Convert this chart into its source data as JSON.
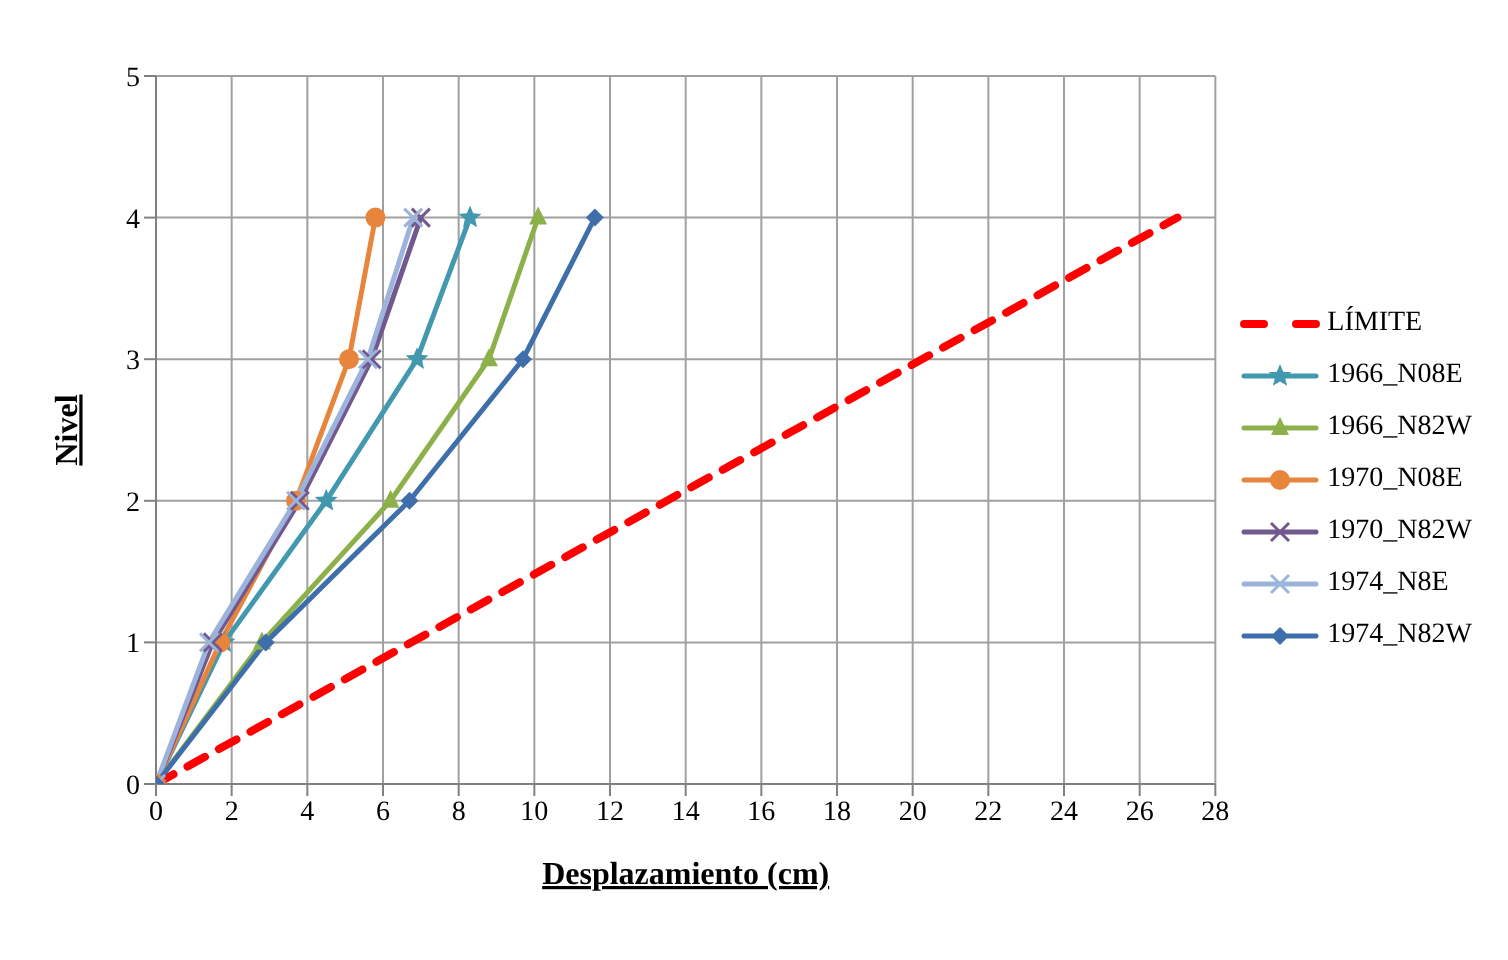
{
  "chart_data": {
    "type": "line",
    "xlabel": "Desplazamiento (cm)",
    "ylabel": "Nivel",
    "xlim": [
      0,
      28
    ],
    "xticks": [
      0,
      2,
      4,
      6,
      8,
      10,
      12,
      14,
      16,
      18,
      20,
      22,
      24,
      26,
      28
    ],
    "ylim": [
      0,
      5
    ],
    "yticks": [
      0,
      1,
      2,
      3,
      4,
      5
    ],
    "grid": true,
    "legend": "right",
    "series": [
      {
        "name": "LÍMITE",
        "color": "#ff0000",
        "x": [
          0,
          27
        ],
        "values": [
          0,
          4
        ],
        "marker": "none",
        "line_style": "dashed"
      },
      {
        "name": "1966_N08E",
        "color": "#4198af",
        "x": [
          0,
          1.8,
          4.5,
          6.9,
          8.3
        ],
        "values": [
          0,
          1,
          2,
          3,
          4
        ],
        "marker": "star"
      },
      {
        "name": "1966_N82W",
        "color": "#8db14a",
        "x": [
          0,
          2.8,
          6.2,
          8.8,
          10.1
        ],
        "values": [
          0,
          1,
          2,
          3,
          4
        ],
        "marker": "triangle"
      },
      {
        "name": "1970_N08E",
        "color": "#e8853d",
        "x": [
          0,
          1.7,
          3.7,
          5.1,
          5.8
        ],
        "values": [
          0,
          1,
          2,
          3,
          4
        ],
        "marker": "circle"
      },
      {
        "name": "1970_N82W",
        "color": "#71588f",
        "x": [
          0,
          1.5,
          3.8,
          5.7,
          7.0
        ],
        "values": [
          0,
          1,
          2,
          3,
          4
        ],
        "marker": "cross"
      },
      {
        "name": "1974_N8E",
        "color": "#9cb4dc",
        "x": [
          0,
          1.4,
          3.7,
          5.6,
          6.8
        ],
        "values": [
          0,
          1,
          2,
          3,
          4
        ],
        "marker": "cross"
      },
      {
        "name": "1974_N82W",
        "color": "#3f6faa",
        "x": [
          0,
          2.9,
          6.7,
          9.7,
          11.6
        ],
        "values": [
          0,
          1,
          2,
          3,
          4
        ],
        "marker": "diamond"
      }
    ]
  }
}
